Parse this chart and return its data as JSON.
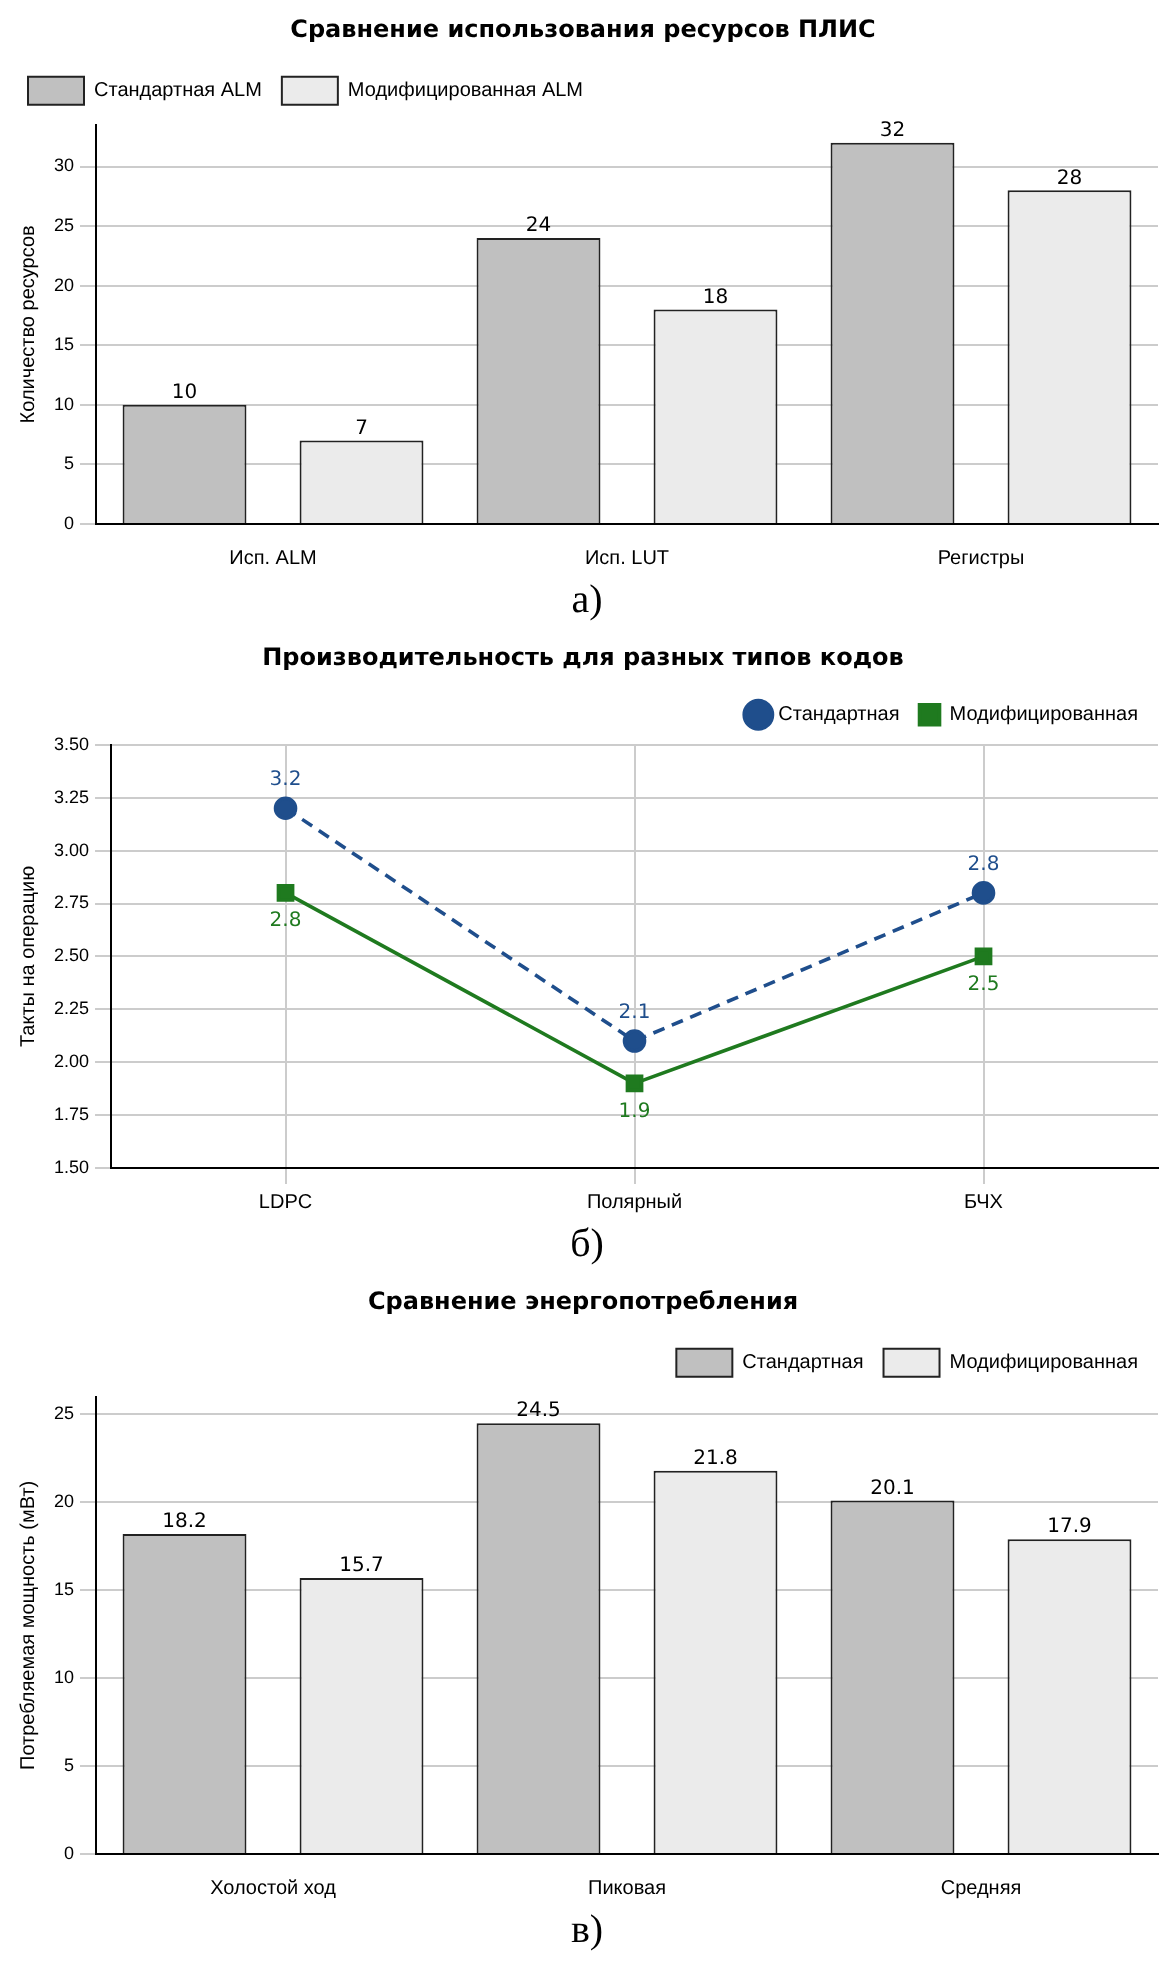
{
  "chart_data": [
    {
      "type": "bar",
      "title": "Сравнение использования ресурсов ПЛИС",
      "ylabel": "Количество ресурсов",
      "categories": [
        "Исп. ALM",
        "Исп. LUT",
        "Регистры"
      ],
      "series": [
        {
          "name": "Стандартная ALM",
          "color": "#c0c0c0",
          "values": [
            10,
            24,
            32
          ]
        },
        {
          "name": "Модифицированная ALM",
          "color": "#ebebeb",
          "values": [
            7,
            18,
            28
          ]
        }
      ],
      "ylim": [
        0,
        33.5
      ],
      "yticks": [
        0,
        5,
        10,
        15,
        20,
        25,
        30
      ],
      "grid": "y",
      "legend": "top left",
      "data_labels": true,
      "annotations": [
        "а)"
      ]
    },
    {
      "type": "line",
      "title": "Производительность для разных типов кодов",
      "ylabel": "Такты на операцию",
      "categories": [
        "LDPC",
        "Полярный",
        "БЧХ"
      ],
      "series": [
        {
          "name": "Стандартная",
          "color": "#1f4e8c",
          "values": [
            3.2,
            2.1,
            2.8
          ],
          "marker": "circle",
          "line_style": "dashed"
        },
        {
          "name": "Модифицированная",
          "color": "#1f7a1f",
          "values": [
            2.8,
            1.9,
            2.5
          ],
          "marker": "square",
          "line_style": "solid"
        }
      ],
      "ylim": [
        1.5,
        3.5
      ],
      "yticks": [
        {
          "value": 1.5,
          "label": "1.50"
        },
        {
          "value": 1.75,
          "label": "1.75"
        },
        {
          "value": 2,
          "label": "2.00"
        },
        {
          "value": 2.25,
          "label": "2.25"
        },
        {
          "value": 2.5,
          "label": "2.50"
        },
        {
          "value": 2.75,
          "label": "2.75"
        },
        {
          "value": 3,
          "label": "3.00"
        },
        {
          "value": 3.25,
          "label": "3.25"
        },
        {
          "value": 3.5,
          "label": "3.50"
        }
      ],
      "grid": true,
      "legend": "top right",
      "data_labels": true,
      "annotations": [
        "б)"
      ]
    },
    {
      "type": "bar",
      "title": "Сравнение энергопотребления",
      "ylabel": "Потребляемая мощность (мВт)",
      "categories": [
        "Холостой ход",
        "Пиковая",
        "Средняя"
      ],
      "series": [
        {
          "name": "Стандартная",
          "color": "#c0c0c0",
          "values": [
            18.2,
            24.5,
            20.1
          ]
        },
        {
          "name": "Модифицированная",
          "color": "#ebebeb",
          "values": [
            15.7,
            21.8,
            17.9
          ]
        }
      ],
      "ylim": [
        0,
        26
      ],
      "yticks": [
        0,
        5,
        10,
        15,
        20,
        25
      ],
      "grid": "y",
      "legend": "top right",
      "data_labels": true,
      "annotations": [
        "в)"
      ]
    }
  ]
}
